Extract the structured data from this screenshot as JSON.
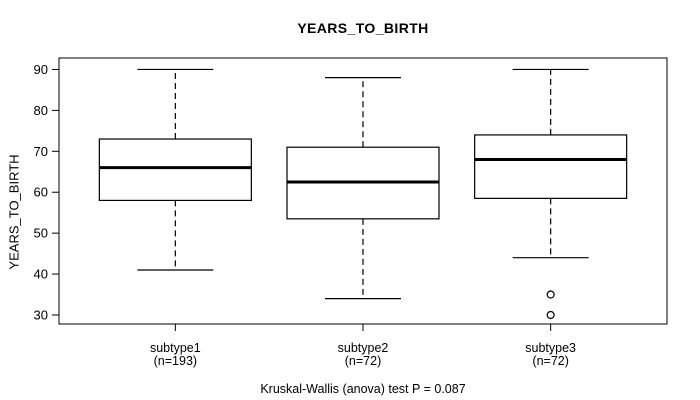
{
  "chart_data": {
    "type": "boxplot",
    "title": "YEARS_TO_BIRTH",
    "ylabel": "YEARS_TO_BIRTH",
    "footer": "Kruskal-Wallis (anova) test P = 0.087",
    "ylim": [
      27.8,
      92.8
    ],
    "yticks": [
      30,
      40,
      50,
      60,
      70,
      80,
      90
    ],
    "grid": false,
    "legend": "none",
    "groups": [
      {
        "label": "subtype1",
        "count_label": "(n=193)",
        "whisker_low": 41,
        "q1": 58,
        "median": 66,
        "q3": 73,
        "whisker_high": 90,
        "outliers": []
      },
      {
        "label": "subtype2",
        "count_label": "(n=72)",
        "whisker_low": 34,
        "q1": 53.5,
        "median": 62.5,
        "q3": 71,
        "whisker_high": 88,
        "outliers": []
      },
      {
        "label": "subtype3",
        "count_label": "(n=72)",
        "whisker_low": 44,
        "q1": 58.5,
        "median": 68,
        "q3": 74,
        "whisker_high": 90,
        "outliers": [
          35,
          30
        ]
      }
    ],
    "colors": {
      "line": "#000000",
      "box_fill": "#ffffff",
      "background": "#ffffff"
    }
  }
}
